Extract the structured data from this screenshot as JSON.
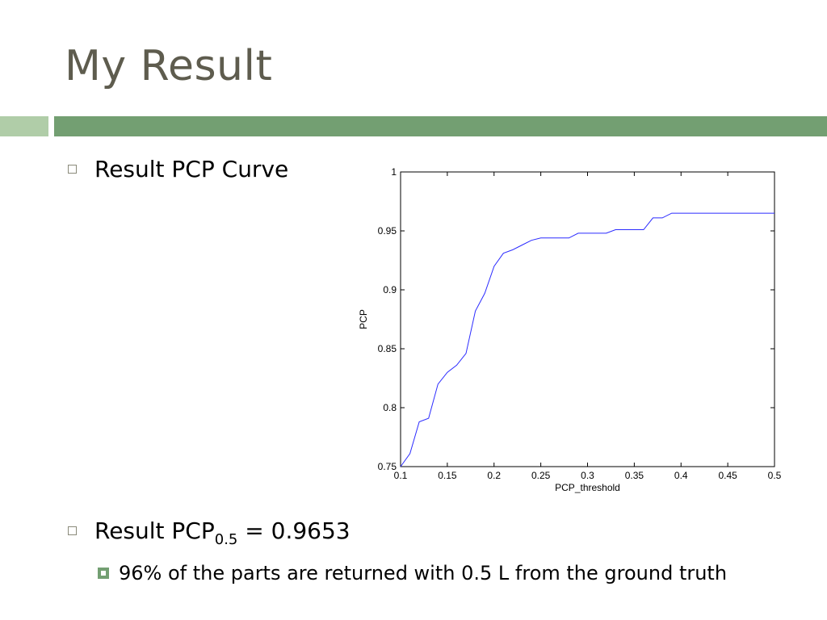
{
  "slide": {
    "title": "My Result",
    "bullet1": "Result PCP Curve",
    "bullet2_prefix": "Result PCP",
    "bullet2_sub": "0.5",
    "bullet2_suffix": " = 0.9653",
    "sub_bullet": "96% of the parts are returned with 0.5 L from the ground truth"
  },
  "colors": {
    "title": "#5e5c4e",
    "band_light": "#b0cda8",
    "band_dark": "#739f72",
    "series_line": "#2b2bff"
  },
  "chart_data": {
    "type": "line",
    "title": "",
    "xlabel": "PCP_threshold",
    "ylabel": "PCP",
    "xlim": [
      0.1,
      0.5
    ],
    "ylim": [
      0.75,
      1
    ],
    "xticks": [
      0.1,
      0.15,
      0.2,
      0.25,
      0.3,
      0.35,
      0.4,
      0.45,
      0.5
    ],
    "xtick_labels": [
      "0.1",
      "0.15",
      "0.2",
      "0.25",
      "0.3",
      "0.35",
      "0.4",
      "0.45",
      "0.5"
    ],
    "yticks": [
      0.75,
      0.8,
      0.85,
      0.9,
      0.95,
      1
    ],
    "ytick_labels": [
      "0.75",
      "0.8",
      "0.85",
      "0.9",
      "0.95",
      "1"
    ],
    "grid": false,
    "series": [
      {
        "x": [
          0.1,
          0.11,
          0.12,
          0.13,
          0.14,
          0.15,
          0.16,
          0.17,
          0.18,
          0.19,
          0.2,
          0.21,
          0.22,
          0.23,
          0.24,
          0.25,
          0.26,
          0.27,
          0.28,
          0.29,
          0.3,
          0.31,
          0.32,
          0.33,
          0.34,
          0.35,
          0.36,
          0.37,
          0.38,
          0.39,
          0.4,
          0.45,
          0.5
        ],
        "y": [
          0.75,
          0.761,
          0.788,
          0.791,
          0.82,
          0.83,
          0.836,
          0.846,
          0.882,
          0.897,
          0.92,
          0.931,
          0.934,
          0.938,
          0.942,
          0.944,
          0.944,
          0.944,
          0.944,
          0.948,
          0.948,
          0.948,
          0.948,
          0.951,
          0.951,
          0.951,
          0.951,
          0.961,
          0.961,
          0.965,
          0.965,
          0.965,
          0.965
        ]
      }
    ]
  }
}
